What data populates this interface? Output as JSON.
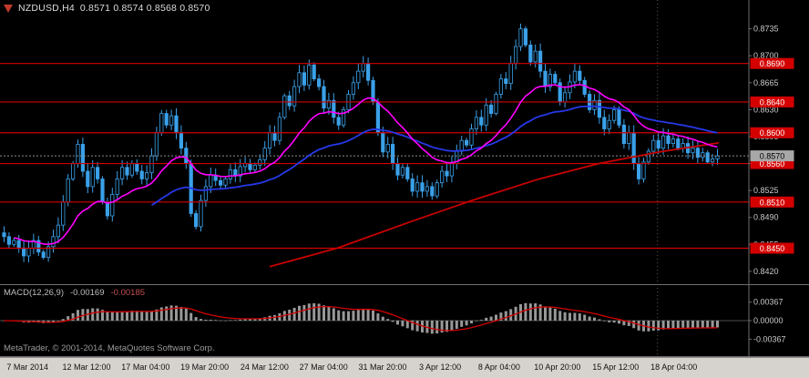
{
  "header": {
    "symbol_tf": "NZDUSD,H4",
    "quotes": "0.8571 0.8574 0.8568 0.8570"
  },
  "chart_data": {
    "type": "candlestick",
    "title": "NZDUSD,H4",
    "symbol": "NZDUSD",
    "timeframe": "H4",
    "current_bar": {
      "open": 0.8571,
      "high": 0.8574,
      "low": 0.8568,
      "close": 0.857
    },
    "price_axis": {
      "min": 0.8408,
      "max": 0.8763,
      "tick_start": 0.8735,
      "tick_step": 0.0035,
      "tick_count": 10
    },
    "horizontal_levels": [
      0.869,
      0.864,
      0.86,
      0.856,
      0.851,
      0.845
    ],
    "bid_line": 0.857,
    "first_open": 0.847,
    "closes": [
      0.8465,
      0.8455,
      0.846,
      0.845,
      0.844,
      0.845,
      0.846,
      0.8445,
      0.8438,
      0.8452,
      0.8465,
      0.848,
      0.851,
      0.854,
      0.856,
      0.8585,
      0.855,
      0.853,
      0.8555,
      0.854,
      0.851,
      0.8492,
      0.852,
      0.854,
      0.8555,
      0.8545,
      0.856,
      0.855,
      0.854,
      0.8548,
      0.857,
      0.86,
      0.8625,
      0.861,
      0.8622,
      0.86,
      0.858,
      0.856,
      0.8495,
      0.8478,
      0.8512,
      0.853,
      0.8545,
      0.8538,
      0.8532,
      0.854,
      0.8552,
      0.8544,
      0.8556,
      0.856,
      0.8552,
      0.8558,
      0.8565,
      0.858,
      0.86,
      0.859,
      0.862,
      0.8648,
      0.8635,
      0.866,
      0.8678,
      0.8662,
      0.8688,
      0.867,
      0.866,
      0.8632,
      0.8642,
      0.862,
      0.861,
      0.863,
      0.865,
      0.8665,
      0.868,
      0.869,
      0.8668,
      0.864,
      0.86,
      0.8575,
      0.8585,
      0.856,
      0.8545,
      0.8555,
      0.854,
      0.8524,
      0.8535,
      0.8524,
      0.853,
      0.8518,
      0.8535,
      0.855,
      0.8544,
      0.856,
      0.8576,
      0.859,
      0.8584,
      0.8605,
      0.862,
      0.861,
      0.8636,
      0.8625,
      0.865,
      0.867,
      0.8664,
      0.869,
      0.8712,
      0.8735,
      0.8714,
      0.8692,
      0.8706,
      0.868,
      0.866,
      0.8676,
      0.8665,
      0.864,
      0.8652,
      0.8666,
      0.868,
      0.8668,
      0.865,
      0.863,
      0.8642,
      0.862,
      0.8605,
      0.8616,
      0.863,
      0.861,
      0.8586,
      0.86,
      0.856,
      0.854,
      0.8562,
      0.8576,
      0.859,
      0.858,
      0.8596,
      0.8586,
      0.8592,
      0.858,
      0.8586,
      0.8574,
      0.858,
      0.8568,
      0.8574,
      0.8562,
      0.8566,
      0.857
    ],
    "wick_base": 0.0003,
    "wick_amp": 0.0007,
    "ma_fast": {
      "period": 18,
      "color": "#ff00ff",
      "start_index": 2
    },
    "ma_mid": {
      "period": 48,
      "color": "#2638e8",
      "start_index": 30
    },
    "ma_slow_path": [
      [
        0.36,
        0.8426
      ],
      [
        0.45,
        0.845
      ],
      [
        0.55,
        0.8485
      ],
      [
        0.63,
        0.8512
      ],
      [
        0.72,
        0.854
      ],
      [
        0.8,
        0.856
      ],
      [
        0.88,
        0.8575
      ],
      [
        0.96,
        0.8587
      ]
    ],
    "macd": {
      "label": "MACD(12,26,9)",
      "value_main": "-0.00169",
      "value_signal": "-0.00185",
      "fast": 12,
      "slow": 26,
      "signal": 9,
      "axis_ticks": [
        "0.00367",
        "0.00000",
        "-0.00367"
      ],
      "range": 0.0065
    },
    "time_labels": [
      {
        "f": 0.034,
        "t": "7 Mar 2014"
      },
      {
        "f": 0.107,
        "t": "12 Mar 12:00"
      },
      {
        "f": 0.18,
        "t": "17 Mar 04:00"
      },
      {
        "f": 0.253,
        "t": "19 Mar 20:00"
      },
      {
        "f": 0.327,
        "t": "24 Mar 12:00"
      },
      {
        "f": 0.4,
        "t": "27 Mar 04:00"
      },
      {
        "f": 0.473,
        "t": "31 Mar 20:00"
      },
      {
        "f": 0.544,
        "t": "3 Apr 12:00"
      },
      {
        "f": 0.617,
        "t": "8 Apr 04:00"
      },
      {
        "f": 0.689,
        "t": "10 Apr 20:00"
      },
      {
        "f": 0.761,
        "t": "15 Apr 12:00"
      },
      {
        "f": 0.833,
        "t": "18 Apr 04:00"
      }
    ],
    "vline_fraction": 0.878,
    "footer": "MetaTrader, © 2001-2014, MetaQuotes Software Corp.",
    "colors": {
      "background": "#000000",
      "candle": "#3aa0e8",
      "candle_up_fill": "#000000",
      "hline": "#d40000",
      "hline_label_text": "#ffffff",
      "axis_text": "#c8c8c8",
      "axis_line": "#6e6e6e",
      "bid_box": "#a8a8a8",
      "bid_text": "#000000",
      "macd_bar": "#989898",
      "macd_signal": "#d40000",
      "zero_line": "#4a4a4a",
      "vline": "#5a5a5a",
      "ma_slow": "#c80000",
      "panel_bg": "#d6d3ce"
    }
  }
}
